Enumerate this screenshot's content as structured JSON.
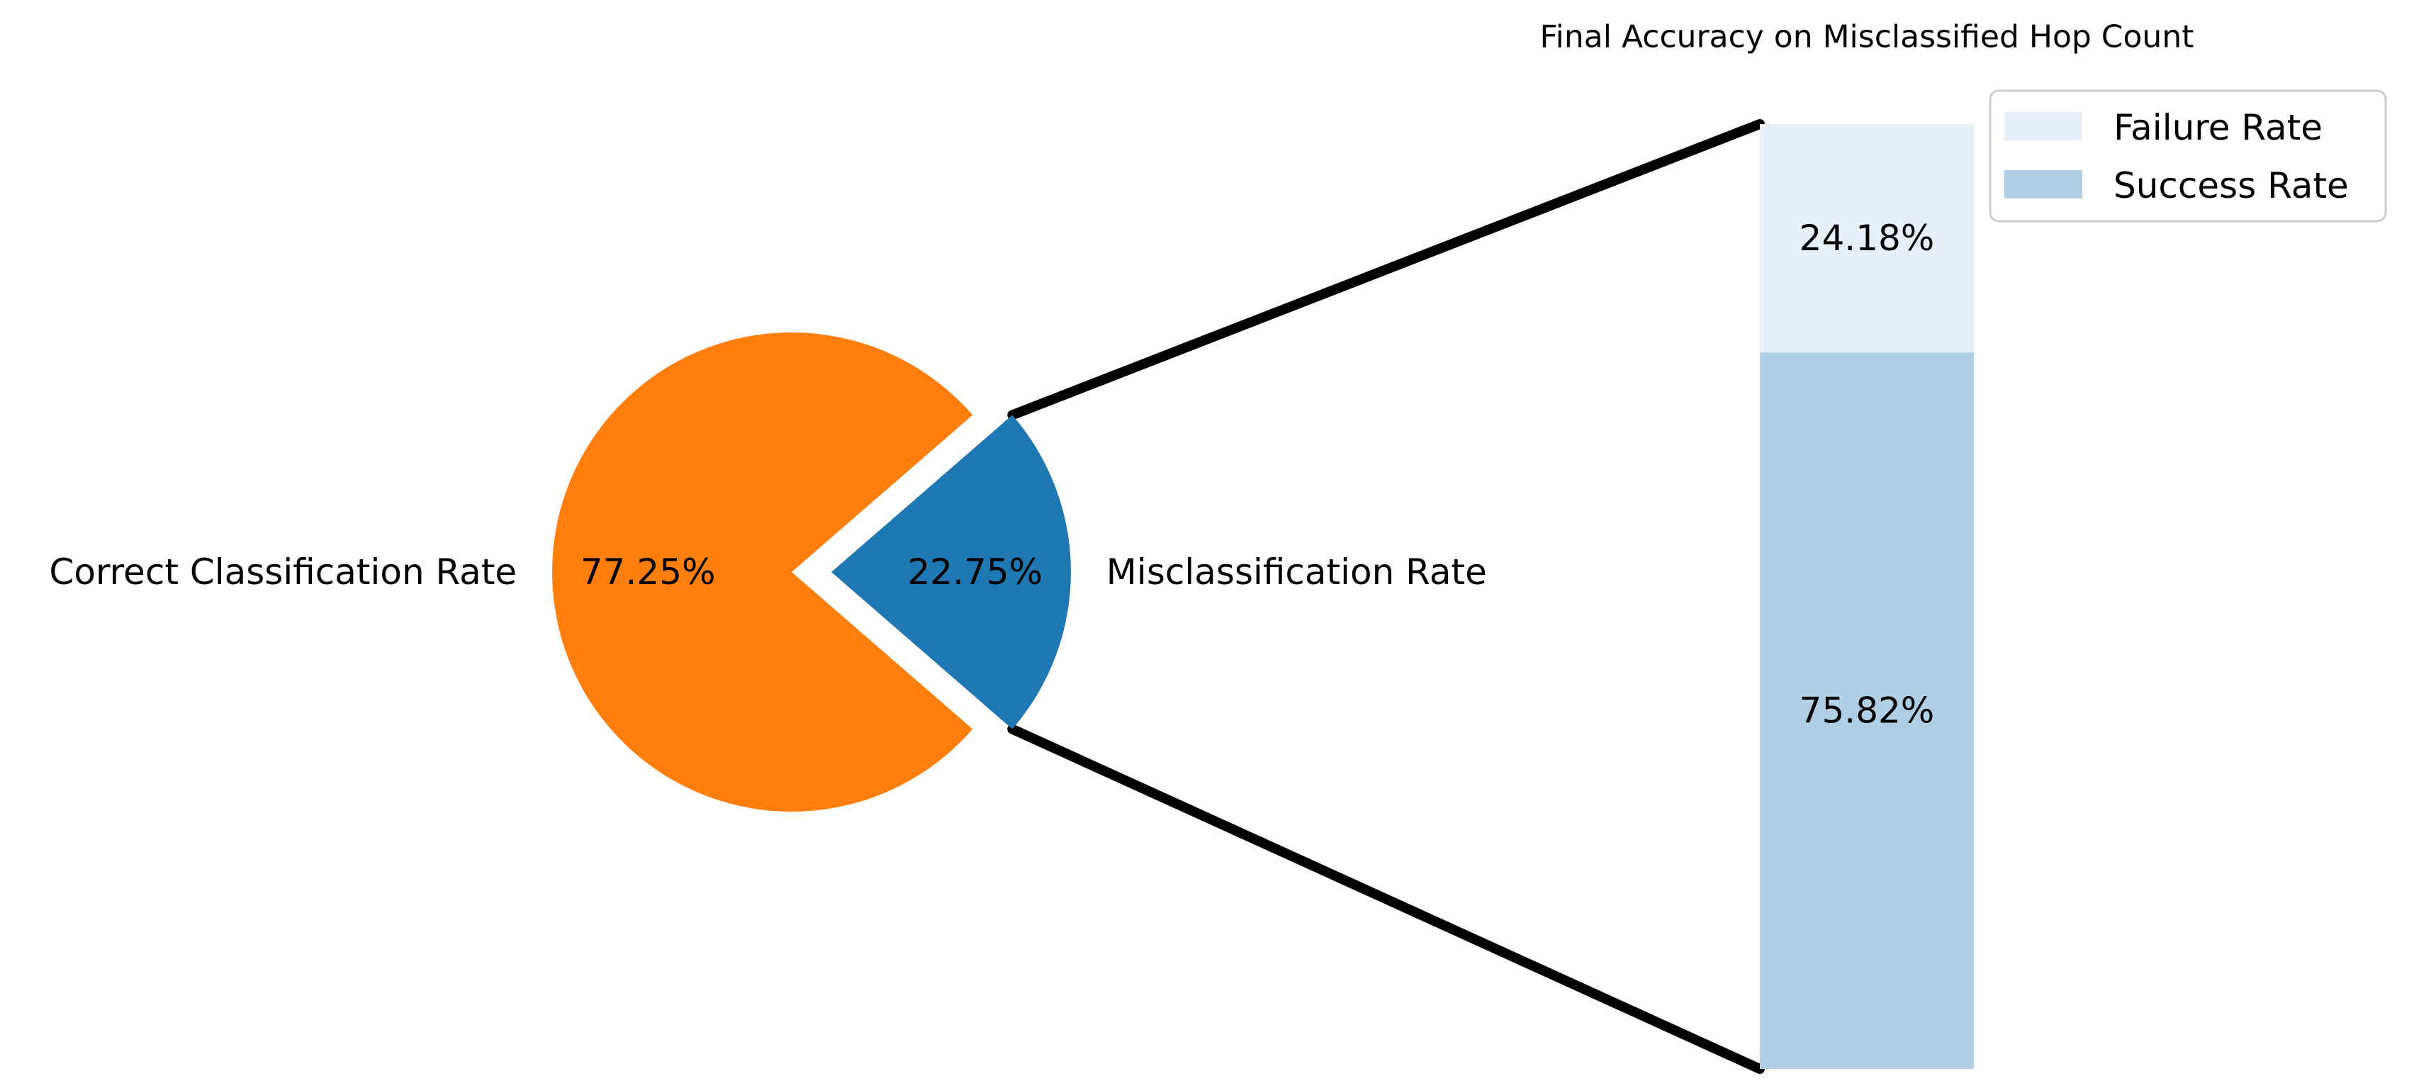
{
  "chart_data": [
    {
      "type": "pie",
      "categories": [
        "Correct Classification Rate",
        "Misclassification Rate"
      ],
      "values": [
        77.25,
        22.75
      ],
      "value_labels": [
        "77.25%",
        "22.75%"
      ],
      "exploded": [
        false,
        true
      ],
      "colors": [
        "#ff7f0e",
        "#1f77b4"
      ]
    },
    {
      "type": "bar",
      "stacked": true,
      "title": "Final Accuracy on Misclassified Hop Count",
      "series": [
        {
          "name": "Success Rate",
          "value": 75.82,
          "label": "75.82%",
          "color": "#b0cfe4"
        },
        {
          "name": "Failure Rate",
          "value": 24.18,
          "label": "24.18%",
          "color": "#e7f0f8"
        }
      ],
      "ylim": [
        0,
        100
      ],
      "legend": {
        "placement": "top-right",
        "entries": [
          "Failure Rate",
          "Success Rate"
        ]
      }
    }
  ]
}
